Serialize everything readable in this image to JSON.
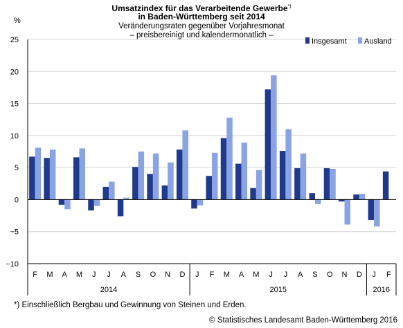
{
  "header": {
    "title_line1": "Umsatzindex für das Verarbeitende Gewerbe",
    "title_mark": "*)",
    "title_line2": "in Baden-Württemberg seit 2014",
    "subtitle_line1": "Veränderungsraten gegenüber Vorjahresmonat",
    "subtitle_line2": "– preisbereinigt und kalendermonatlich –"
  },
  "footnote": "*) Einschließlich Bergbau und Gewinnung von Steinen und Erden.",
  "source": "© Statistisches Landesamt Baden-Württemberg 2016",
  "colors": {
    "insgesamt": "#1f3a8c",
    "ausland": "#8aa3e3",
    "grid": "#d4d4d4",
    "axis": "#000000"
  },
  "chart_data": {
    "type": "bar",
    "ylabel": "%",
    "ylim": [
      -10,
      25
    ],
    "yticks": [
      -10,
      -5,
      0,
      5,
      10,
      15,
      20,
      25
    ],
    "grid": true,
    "legend_position": "top-right",
    "categories": [
      "F",
      "M",
      "A",
      "M",
      "J",
      "J",
      "A",
      "S",
      "O",
      "N",
      "D",
      "J",
      "F",
      "M",
      "A",
      "M",
      "J",
      "J",
      "A",
      "S",
      "O",
      "N",
      "D",
      "J",
      "F"
    ],
    "year_groups": [
      {
        "label": "2014",
        "count": 11
      },
      {
        "label": "2015",
        "count": 12
      },
      {
        "label": "2016",
        "count": 2
      }
    ],
    "series": [
      {
        "name": "Insgesamt",
        "values": [
          6.7,
          6.5,
          -0.8,
          6.6,
          -1.7,
          2.0,
          -2.6,
          5.1,
          4.0,
          2.2,
          7.8,
          -1.4,
          3.7,
          9.6,
          5.6,
          1.8,
          17.2,
          7.6,
          4.9,
          1.0,
          4.9,
          -0.3,
          0.8,
          -3.2,
          4.4
        ]
      },
      {
        "name": "Ausland",
        "values": [
          8.1,
          7.8,
          -1.5,
          8.0,
          -1.0,
          2.8,
          0.3,
          7.5,
          7.2,
          5.8,
          10.8,
          -0.9,
          7.3,
          12.8,
          8.9,
          4.6,
          19.4,
          11.0,
          7.2,
          -0.7,
          4.8,
          -3.9,
          0.9,
          -4.2,
          null
        ]
      }
    ]
  }
}
